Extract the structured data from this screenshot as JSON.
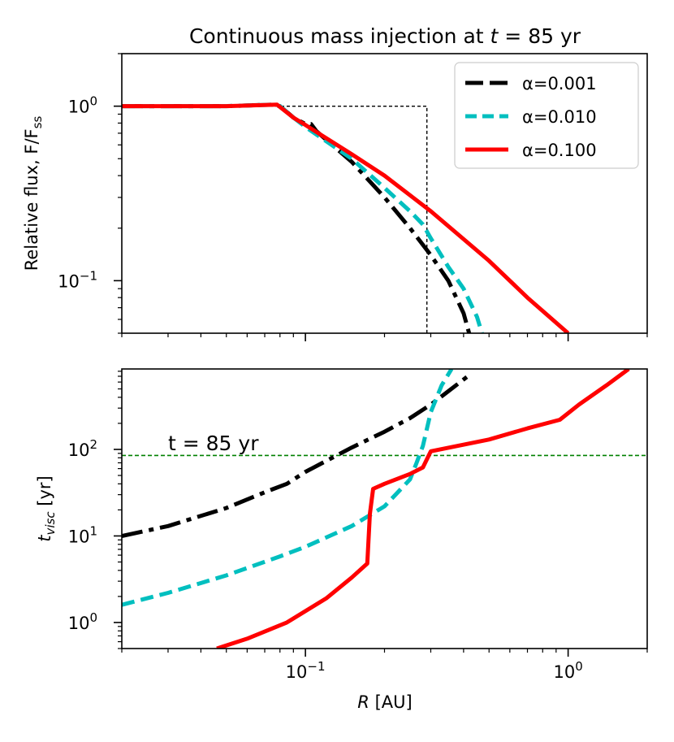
{
  "colors": {
    "alpha_001": "#000000",
    "alpha_010": "#00bfbf",
    "alpha_100": "#ff0000",
    "tline": "#008000",
    "axis": "#000000"
  },
  "chart_data": [
    {
      "type": "line",
      "title_prefix": "Continuous mass injection at ",
      "title_var": "t",
      "title_suffix": " = 85 yr",
      "xscale": "log",
      "yscale": "log",
      "xlim": [
        0.02,
        2.0
      ],
      "ylim": [
        0.05,
        2.0
      ],
      "ylabel": "Relative flux, F/F",
      "ylabel_sub": "ss",
      "yticks": [
        {
          "value": 1,
          "label": "10",
          "exp": "0"
        },
        {
          "value": 0.1,
          "label": "10",
          "exp": "−1"
        }
      ],
      "legend_position": "top-right",
      "legend": [
        {
          "key": "s1",
          "label": "α=0.001"
        },
        {
          "key": "s2",
          "label": "α=0.010"
        },
        {
          "key": "s3",
          "label": "α=0.100"
        }
      ],
      "reference_box": {
        "x_edge": 0.29,
        "y_level": 1.0
      },
      "series": [
        {
          "key": "s1",
          "name": "α=0.001",
          "style": "dashdot",
          "x": [
            0.02,
            0.05,
            0.075,
            0.08,
            0.09,
            0.1,
            0.105,
            0.11,
            0.15,
            0.2,
            0.25,
            0.29,
            0.3,
            0.35,
            0.4,
            0.42
          ],
          "y": [
            1.0,
            1.0,
            1.02,
            1.0,
            0.86,
            0.79,
            0.79,
            0.72,
            0.48,
            0.3,
            0.2,
            0.15,
            0.14,
            0.1,
            0.065,
            0.05
          ]
        },
        {
          "key": "s2",
          "name": "α=0.010",
          "style": "dashed",
          "x": [
            0.02,
            0.05,
            0.075,
            0.08,
            0.09,
            0.1,
            0.15,
            0.2,
            0.25,
            0.28,
            0.3,
            0.35,
            0.4,
            0.45,
            0.47
          ],
          "y": [
            1.0,
            1.0,
            1.02,
            1.0,
            0.86,
            0.76,
            0.5,
            0.34,
            0.25,
            0.21,
            0.175,
            0.12,
            0.09,
            0.062,
            0.05
          ]
        },
        {
          "key": "s3",
          "name": "α=0.100",
          "style": "solid",
          "x": [
            0.02,
            0.05,
            0.078,
            0.09,
            0.1,
            0.15,
            0.2,
            0.3,
            0.5,
            0.7,
            1.0
          ],
          "y": [
            1.0,
            1.0,
            1.02,
            0.86,
            0.78,
            0.53,
            0.4,
            0.25,
            0.13,
            0.08,
            0.05
          ]
        }
      ]
    },
    {
      "type": "line",
      "xscale": "log",
      "yscale": "log",
      "xlim": [
        0.02,
        2.0
      ],
      "ylim": [
        0.5,
        850
      ],
      "xlabel_var": "R",
      "xlabel_unit": " [AU]",
      "ylabel_var": "t",
      "ylabel_sub": "visc",
      "ylabel_unit": " [yr]",
      "xticks": [
        {
          "value": 0.1,
          "label": "10",
          "exp": "−1"
        },
        {
          "value": 1,
          "label": "10",
          "exp": "0"
        }
      ],
      "yticks": [
        {
          "value": 1,
          "label": "10",
          "exp": "0"
        },
        {
          "value": 10,
          "label": "10",
          "exp": "1"
        },
        {
          "value": 100,
          "label": "10",
          "exp": "2"
        }
      ],
      "hline": {
        "y": 85,
        "style": "dashed"
      },
      "annotation": "t = 85 yr",
      "series": [
        {
          "key": "s1",
          "name": "α=0.001",
          "style": "dashdot",
          "x": [
            0.02,
            0.03,
            0.05,
            0.07,
            0.085,
            0.1,
            0.15,
            0.2,
            0.25,
            0.3,
            0.35,
            0.42
          ],
          "y": [
            10,
            13,
            21,
            32,
            40,
            55,
            105,
            160,
            230,
            330,
            470,
            720
          ]
        },
        {
          "key": "s2",
          "name": "α=0.010",
          "style": "dashed",
          "x": [
            0.02,
            0.03,
            0.05,
            0.08,
            0.1,
            0.15,
            0.2,
            0.25,
            0.265,
            0.28,
            0.3,
            0.33,
            0.36
          ],
          "y": [
            1.6,
            2.2,
            3.5,
            5.8,
            7.5,
            13,
            22,
            45,
            70,
            110,
            270,
            550,
            850
          ]
        },
        {
          "key": "s3",
          "name": "α=0.100",
          "style": "solid",
          "x": [
            0.046,
            0.06,
            0.085,
            0.12,
            0.15,
            0.172,
            0.176,
            0.181,
            0.2,
            0.25,
            0.28,
            0.3,
            0.5,
            0.7,
            0.93,
            1.1,
            1.4,
            1.7
          ],
          "y": [
            0.5,
            0.65,
            1.0,
            1.9,
            3.3,
            4.8,
            18,
            35,
            40,
            52,
            62,
            95,
            130,
            175,
            220,
            330,
            550,
            850
          ]
        }
      ]
    }
  ]
}
